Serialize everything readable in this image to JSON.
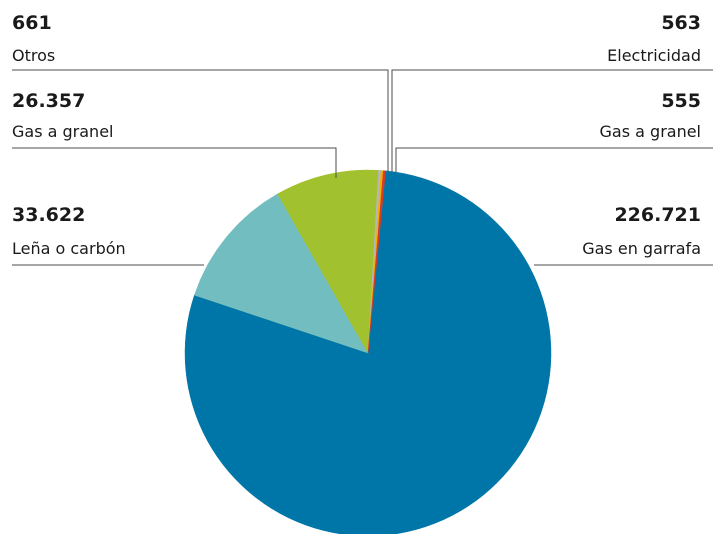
{
  "chart_data": {
    "type": "pie",
    "title": "",
    "slices": [
      {
        "label": "Gas en garrafa",
        "value": 226721,
        "value_label": "226.721",
        "color": "#0076a8"
      },
      {
        "label": "Leña o carbón",
        "value": 33622,
        "value_label": "33.622",
        "color": "#72bdbf"
      },
      {
        "label": "Gas a granel",
        "value": 26357,
        "value_label": "26.357",
        "color": "#a2c12f"
      },
      {
        "label": "Otros",
        "value": 661,
        "value_label": "661",
        "color": "#b5b6b8"
      },
      {
        "label": "Electricidad",
        "value": 563,
        "value_label": "563",
        "color": "#f2b000"
      },
      {
        "label": "Gas a granel",
        "value": 555,
        "value_label": "555",
        "color": "#d83a2a"
      }
    ]
  }
}
